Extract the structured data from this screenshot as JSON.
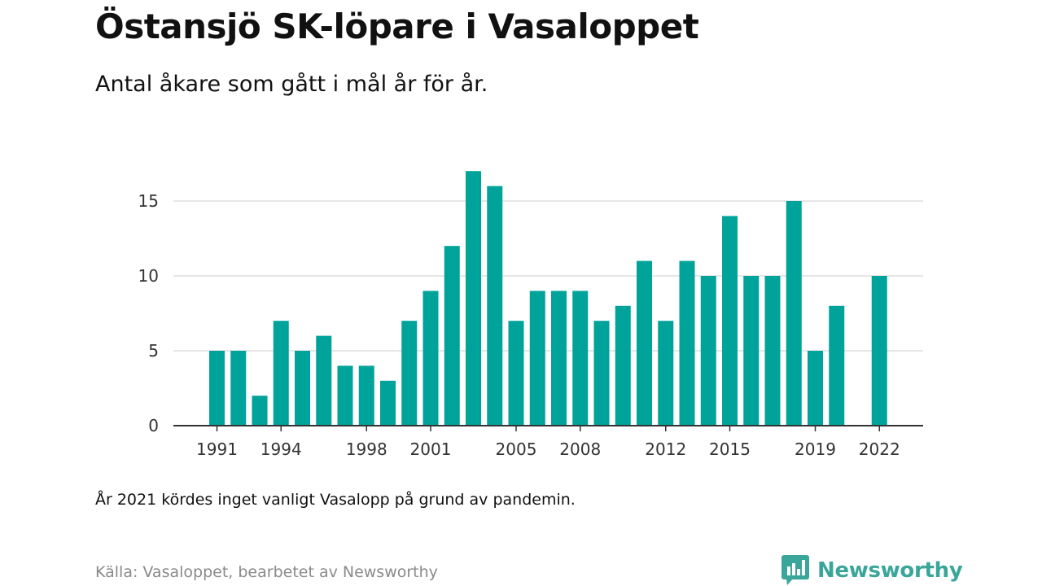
{
  "header": {
    "title": "Östansjö SK-löpare i Vasaloppet",
    "subtitle": "Antal åkare som gått i mål år för år."
  },
  "footer": {
    "note": "År 2021 kördes inget vanligt Vasalopp på grund av pandemin.",
    "source": "Källa: Vasaloppet, bearbetet av Newsworthy",
    "logo_text": "Newsworthy",
    "logo_icon": "newsworthy-chart-bubble-icon"
  },
  "colors": {
    "bar": "#00a39a",
    "grid": "#dddddd",
    "axis": "#333333",
    "logo": "#3aa69a"
  },
  "chart_data": {
    "type": "bar",
    "title": "Östansjö SK-löpare i Vasaloppet",
    "subtitle": "Antal åkare som gått i mål år för år.",
    "xlabel": "",
    "ylabel": "",
    "categories": [
      1991,
      1992,
      1993,
      1994,
      1995,
      1996,
      1997,
      1998,
      1999,
      2000,
      2001,
      2002,
      2003,
      2004,
      2005,
      2006,
      2007,
      2008,
      2009,
      2010,
      2011,
      2012,
      2013,
      2014,
      2015,
      2016,
      2017,
      2018,
      2019,
      2020,
      2021,
      2022
    ],
    "values": [
      5,
      5,
      2,
      7,
      5,
      6,
      4,
      4,
      3,
      7,
      9,
      12,
      17,
      16,
      7,
      9,
      9,
      9,
      7,
      8,
      11,
      7,
      11,
      10,
      14,
      10,
      10,
      15,
      5,
      8,
      null,
      10
    ],
    "x_tick_labels": [
      "1991",
      "1994",
      "1998",
      "2001",
      "2005",
      "2008",
      "2012",
      "2015",
      "2019",
      "2022"
    ],
    "y_ticks": [
      0,
      5,
      10,
      15
    ],
    "ylim": [
      0,
      17
    ],
    "grid": true,
    "legend": "none"
  }
}
